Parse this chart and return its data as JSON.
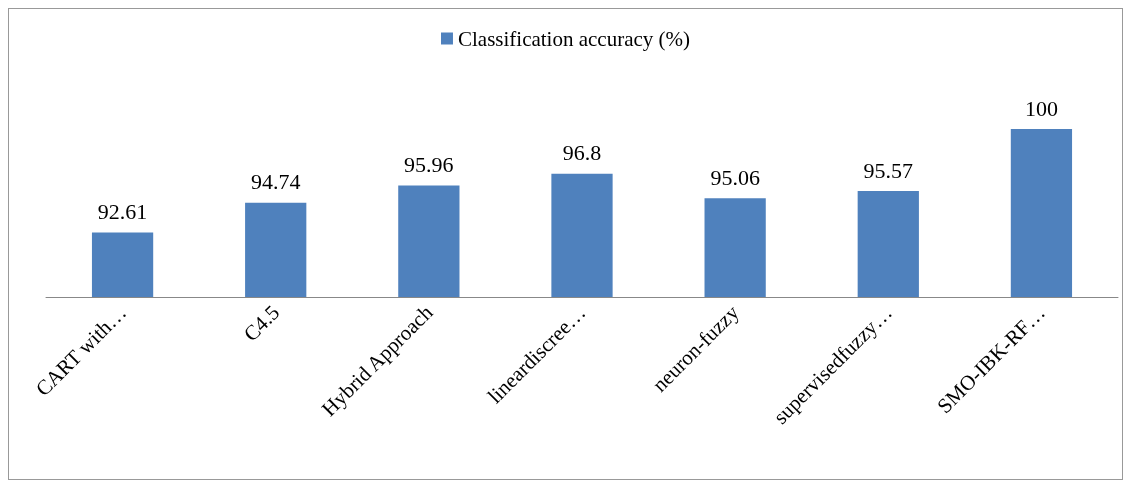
{
  "chart_data": {
    "type": "bar",
    "categories": [
      "CART with…",
      "C4.5",
      "Hybrid Approach",
      "lineardiscree…",
      "neuron-fuzzy",
      "supervisedfuzzy…",
      "SMO-IBK-RF…"
    ],
    "series": [
      {
        "name": "Classification accuracy (%)",
        "color": "#4f81bd",
        "values": [
          92.61,
          94.74,
          95.96,
          96.8,
          95.06,
          95.57,
          100
        ]
      }
    ],
    "ylim": [
      88,
      100
    ],
    "tick_labels": "x",
    "data_labels": true,
    "grid": false,
    "legend": "top"
  }
}
